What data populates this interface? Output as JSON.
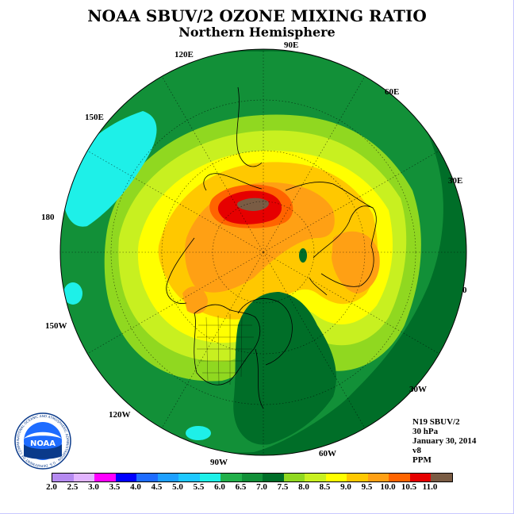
{
  "title": "NOAA SBUV/2 OZONE MIXING RATIO",
  "subtitle": "Northern Hemisphere",
  "longitude_labels": {
    "lon_90e": "90E",
    "lon_60e": "60E",
    "lon_30e": "30E",
    "lon_0": "0",
    "lon_30w": "30W",
    "lon_60w": "60W",
    "lon_90w": "90W",
    "lon_120w": "120W",
    "lon_150w": "150W",
    "lon_180": "180",
    "lon_150e": "150E",
    "lon_120e": "120E"
  },
  "info": {
    "satellite": "N19 SBUV/2",
    "level": "30 hPa",
    "date": "January 30, 2014",
    "version": "v8",
    "units": "PPM"
  },
  "logo": {
    "name": "NOAA",
    "ring_text": "NATIONAL OCEANIC AND ATMOSPHERIC ADMINISTRATION · U.S. DEPARTMENT OF COMMERCE"
  },
  "colorbar": {
    "labels": [
      "2.0",
      "2.5",
      "3.0",
      "3.5",
      "4.0",
      "4.5",
      "5.0",
      "5.5",
      "6.0",
      "6.5",
      "7.0",
      "7.5",
      "8.0",
      "8.5",
      "9.0",
      "9.5",
      "10.0",
      "10.5",
      "11.0"
    ],
    "colors": [
      "#b58af0",
      "#e2b4ff",
      "#ff00ff",
      "#0000ff",
      "#1e6cff",
      "#1ea0ff",
      "#1ec8ff",
      "#1ef0e8",
      "#22b04a",
      "#129038",
      "#006e28",
      "#90d820",
      "#c8f020",
      "#ffff00",
      "#ffc800",
      "#ffa014",
      "#ff6400",
      "#e60000",
      "#7a5c44"
    ]
  },
  "chart_data": {
    "type": "heatmap",
    "title": "NOAA SBUV/2 OZONE MIXING RATIO",
    "subtitle": "Northern Hemisphere",
    "projection": "polar stereographic, north pole",
    "units": "PPM",
    "level": "30 hPa",
    "scale": [
      2.0,
      2.5,
      3.0,
      3.5,
      4.0,
      4.5,
      5.0,
      5.5,
      6.0,
      6.5,
      7.0,
      7.5,
      8.0,
      8.5,
      9.0,
      9.5,
      10.0,
      10.5,
      11.0
    ]
  }
}
